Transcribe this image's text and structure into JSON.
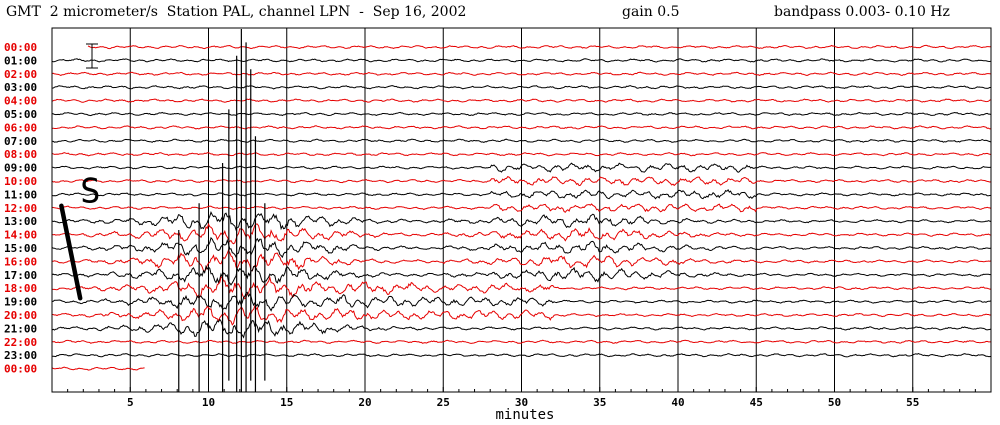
{
  "header": {
    "title": "GMT  2 micrometer/s  Station PAL, channel LPN  -  Sep 16, 2002",
    "gain": "gain 0.5",
    "bandpass": "bandpass 0.003- 0.10 Hz"
  },
  "colors": {
    "red": "#e60000",
    "black": "#000000",
    "grid": "#000000"
  },
  "chart_data": {
    "type": "line",
    "title": "GMT  2 micrometer/s  Station PAL, channel LPN  -  Sep 16, 2002",
    "xlabel": "minutes",
    "ylabel": "",
    "xlim": [
      0,
      60
    ],
    "x_ticks": [
      5,
      10,
      15,
      20,
      25,
      30,
      35,
      40,
      45,
      50,
      55
    ],
    "x_tick_labels": [
      "5",
      "10",
      "15",
      "20",
      "25",
      "30",
      "35",
      "40",
      "45",
      "50",
      "55"
    ],
    "grid": true,
    "rows": [
      {
        "label": "00:00",
        "color": "red"
      },
      {
        "label": "01:00",
        "color": "black"
      },
      {
        "label": "02:00",
        "color": "red"
      },
      {
        "label": "03:00",
        "color": "black"
      },
      {
        "label": "04:00",
        "color": "red"
      },
      {
        "label": "05:00",
        "color": "black"
      },
      {
        "label": "06:00",
        "color": "red"
      },
      {
        "label": "07:00",
        "color": "black"
      },
      {
        "label": "08:00",
        "color": "red"
      },
      {
        "label": "09:00",
        "color": "black"
      },
      {
        "label": "10:00",
        "color": "red"
      },
      {
        "label": "11:00",
        "color": "black"
      },
      {
        "label": "12:00",
        "color": "red"
      },
      {
        "label": "13:00",
        "color": "black"
      },
      {
        "label": "14:00",
        "color": "red"
      },
      {
        "label": "15:00",
        "color": "black"
      },
      {
        "label": "16:00",
        "color": "red"
      },
      {
        "label": "17:00",
        "color": "black"
      },
      {
        "label": "18:00",
        "color": "red"
      },
      {
        "label": "19:00",
        "color": "black"
      },
      {
        "label": "20:00",
        "color": "red"
      },
      {
        "label": "21:00",
        "color": "black"
      },
      {
        "label": "22:00",
        "color": "red"
      },
      {
        "label": "23:00",
        "color": "black"
      },
      {
        "label": "00:00",
        "color": "red"
      }
    ],
    "annotations": [
      {
        "text": "S",
        "x": 1.8,
        "row": 11
      }
    ]
  }
}
